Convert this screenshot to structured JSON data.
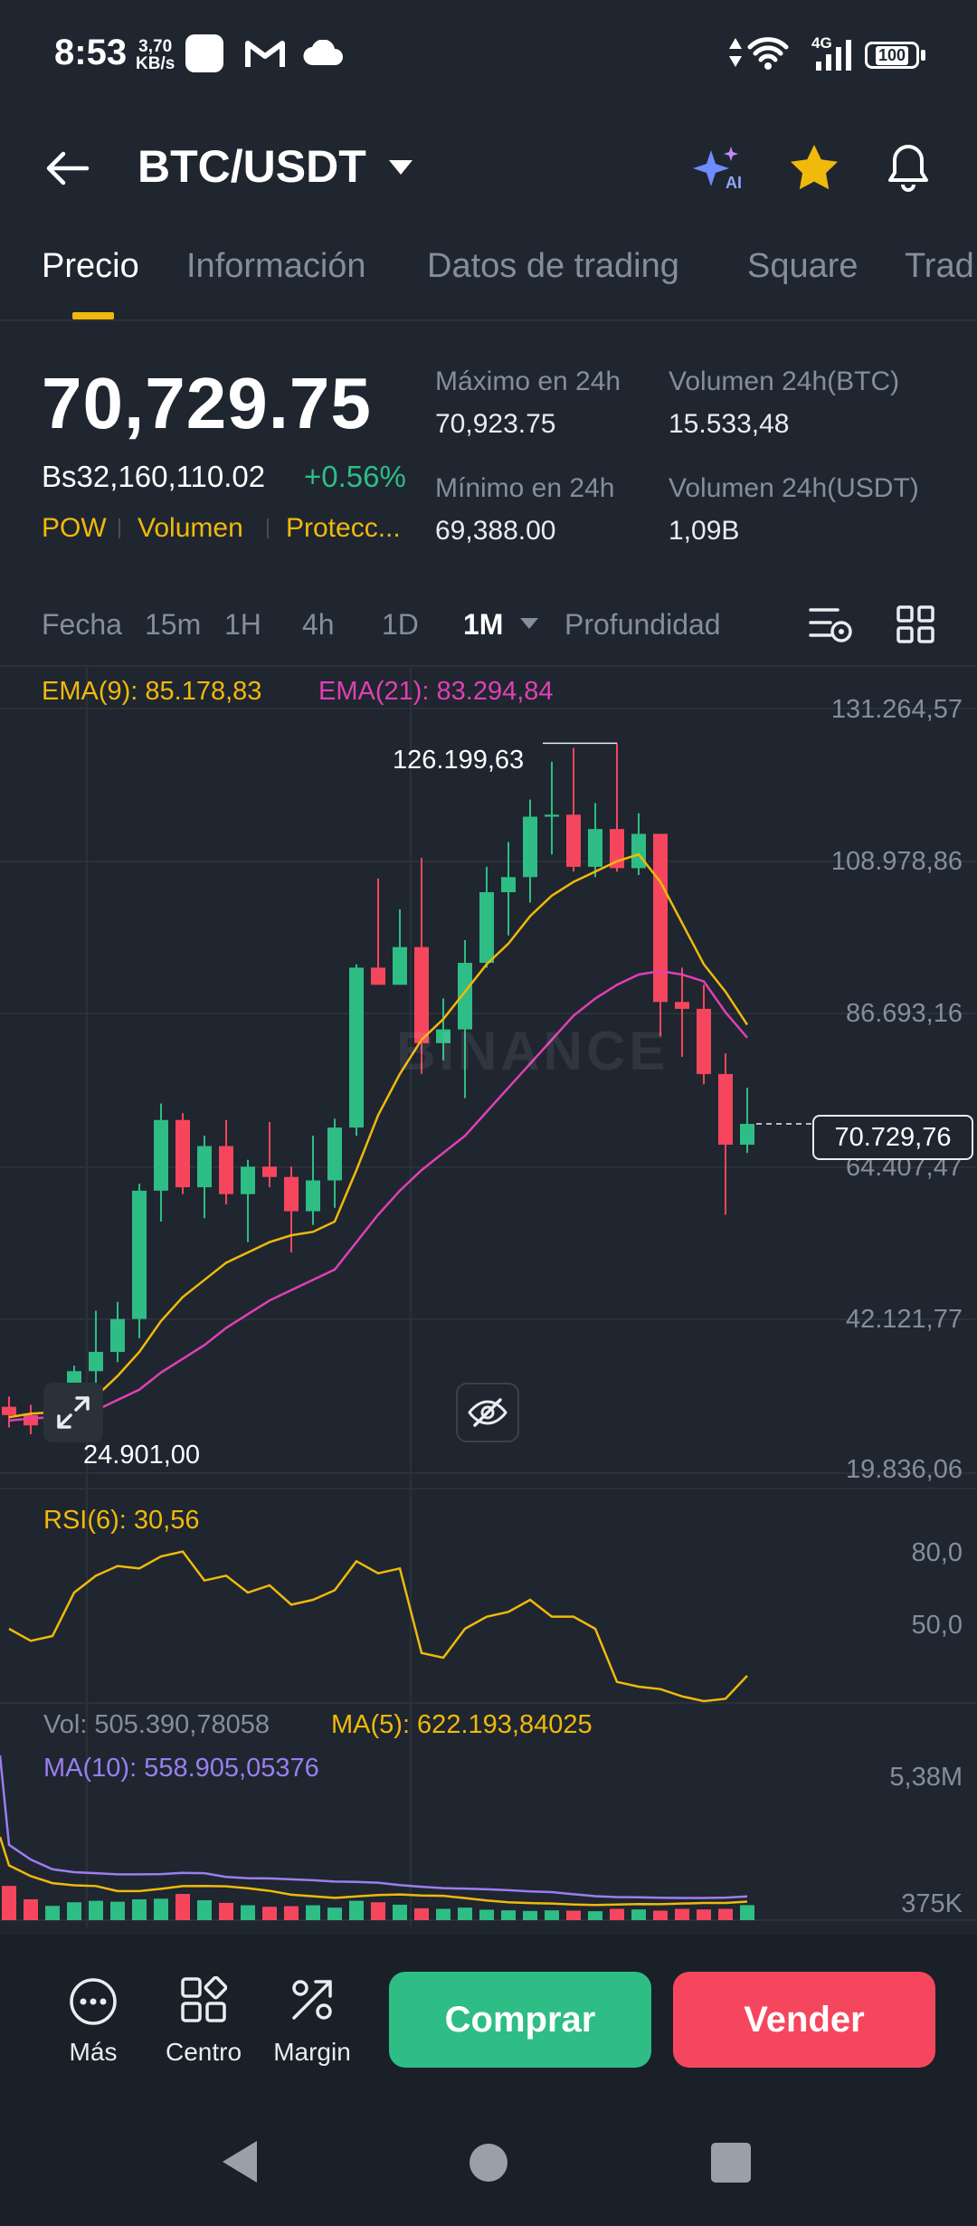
{
  "status_bar": {
    "time": "8:53",
    "speed_value": "3,70",
    "speed_unit": "KB/s",
    "network": "4G",
    "battery": "100"
  },
  "header": {
    "pair": "BTC/USDT"
  },
  "tabs": [
    "Precio",
    "Información",
    "Datos de trading",
    "Square",
    "Trad"
  ],
  "price": {
    "last": "70,729.75",
    "fiat": "Bs32,160,110.02",
    "change": "+0.56%",
    "tags": [
      "POW",
      "Volumen",
      "Protecc..."
    ]
  },
  "stats": {
    "high_label": "Máximo en 24h",
    "high_value": "70,923.75",
    "low_label": "Mínimo en 24h",
    "low_value": "69,388.00",
    "vol_btc_label": "Volumen 24h(BTC)",
    "vol_btc_value": "15.533,48",
    "vol_usdt_label": "Volumen 24h(USDT)",
    "vol_usdt_value": "1,09B"
  },
  "intervals": [
    "Fecha",
    "15m",
    "1H",
    "4h",
    "1D",
    "1M",
    "Profundidad"
  ],
  "selected_interval": "1M",
  "indicators": {
    "ema9": "EMA(9): 85.178,83",
    "ema21": "EMA(21): 83.294,84",
    "rsi": "RSI(6): 30,56",
    "vol": "Vol: 505.390,78058",
    "ma5": "MA(5): 622.193,84025",
    "ma10": "MA(10): 558.905,05376"
  },
  "price_axis": [
    "131.264,57",
    "108.978,86",
    "86.693,16",
    "64.407,47",
    "42.121,77",
    "19.836,06"
  ],
  "rsi_axis": [
    "80,0",
    "50,0"
  ],
  "vol_axis": [
    "5,38M",
    "375K"
  ],
  "annotations": {
    "high_marker": "126.199,63",
    "low_marker": "24.901,00",
    "current_price_tag": "70.729,76"
  },
  "watermark": "BINANCE",
  "colors": {
    "up": "#2ebd85",
    "down": "#f6465d",
    "ema9": "#f0b90b",
    "ema21": "#e040b4",
    "accent": "#f0b90b"
  },
  "toolbar": {
    "more_label": "Más",
    "center_label": "Centro",
    "margin_label": "Margin",
    "buy_label": "Comprar",
    "sell_label": "Vender"
  },
  "chart_data": {
    "type": "candlestick",
    "ylim": [
      19836.06,
      131264.57
    ],
    "candles_ohlc": [
      [
        29500,
        31000,
        26500,
        28300
      ],
      [
        28300,
        29800,
        25500,
        26800
      ],
      [
        26800,
        28600,
        24901,
        27200
      ],
      [
        27200,
        35500,
        26500,
        34700
      ],
      [
        34700,
        43500,
        33000,
        37500
      ],
      [
        37500,
        44800,
        36000,
        42300
      ],
      [
        42300,
        62000,
        39500,
        61000
      ],
      [
        61000,
        73700,
        56500,
        71300
      ],
      [
        71300,
        72300,
        60500,
        61500
      ],
      [
        61500,
        69000,
        57000,
        67500
      ],
      [
        67500,
        71300,
        59000,
        60500
      ],
      [
        60500,
        65500,
        53500,
        64500
      ],
      [
        64500,
        71000,
        61500,
        63000
      ],
      [
        63000,
        64500,
        52000,
        58000
      ],
      [
        58000,
        69000,
        56000,
        62500
      ],
      [
        62500,
        71500,
        58500,
        70200
      ],
      [
        70200,
        94000,
        69000,
        93500
      ],
      [
        93500,
        106500,
        92000,
        91000
      ],
      [
        91000,
        102000,
        91500,
        96500
      ],
      [
        96500,
        109500,
        78000,
        82500
      ],
      [
        82500,
        89000,
        80000,
        84500
      ],
      [
        84500,
        97500,
        74500,
        94200
      ],
      [
        94200,
        108200,
        93500,
        104500
      ],
      [
        104500,
        111800,
        98200,
        106700
      ],
      [
        106700,
        118000,
        103000,
        115500
      ],
      [
        115500,
        123500,
        110000,
        115800
      ],
      [
        115800,
        125500,
        107500,
        108200
      ],
      [
        108200,
        117500,
        106700,
        113700
      ],
      [
        113700,
        126199.63,
        107500,
        108000
      ],
      [
        108000,
        116000,
        107000,
        113000
      ],
      [
        113000,
        110500,
        83500,
        88500
      ],
      [
        88500,
        93500,
        80500,
        87500
      ],
      [
        87500,
        91000,
        76500,
        78000
      ],
      [
        78000,
        81000,
        57500,
        67700
      ],
      [
        67700,
        76000,
        66500,
        70730
      ]
    ],
    "ema9": [
      28000,
      28500,
      28700,
      29800,
      31000,
      34000,
      37500,
      42000,
      45500,
      48000,
      50500,
      52000,
      53500,
      54500,
      55000,
      56500,
      64000,
      72000,
      78000,
      83000,
      86000,
      90000,
      94000,
      97000,
      101000,
      104000,
      106000,
      107500,
      109000,
      110000,
      106000,
      100000,
      94000,
      90000,
      85178.83
    ],
    "ema21": [
      27500,
      27800,
      28000,
      28300,
      29000,
      30500,
      32000,
      34500,
      36500,
      38500,
      41000,
      43000,
      45000,
      46500,
      48000,
      49500,
      53500,
      57500,
      61000,
      64000,
      66500,
      69000,
      72500,
      76000,
      79500,
      83000,
      86500,
      89000,
      91000,
      92500,
      93000,
      92500,
      91500,
      87000,
      83294.84
    ],
    "rsi6": [
      50,
      45,
      47,
      65,
      72,
      76,
      75,
      80,
      82,
      70,
      72,
      65,
      68,
      60,
      62,
      66,
      78,
      73,
      75,
      40,
      38,
      50,
      55,
      57,
      62,
      55,
      55,
      50,
      28,
      26,
      25,
      22,
      20,
      21,
      30.56
    ],
    "volume_k": [
      1150,
      700,
      480,
      600,
      650,
      620,
      700,
      720,
      880,
      670,
      580,
      500,
      450,
      470,
      500,
      420,
      650,
      600,
      520,
      400,
      380,
      420,
      350,
      330,
      310,
      330,
      320,
      300,
      380,
      360,
      320,
      380,
      360,
      380,
      505
    ]
  }
}
